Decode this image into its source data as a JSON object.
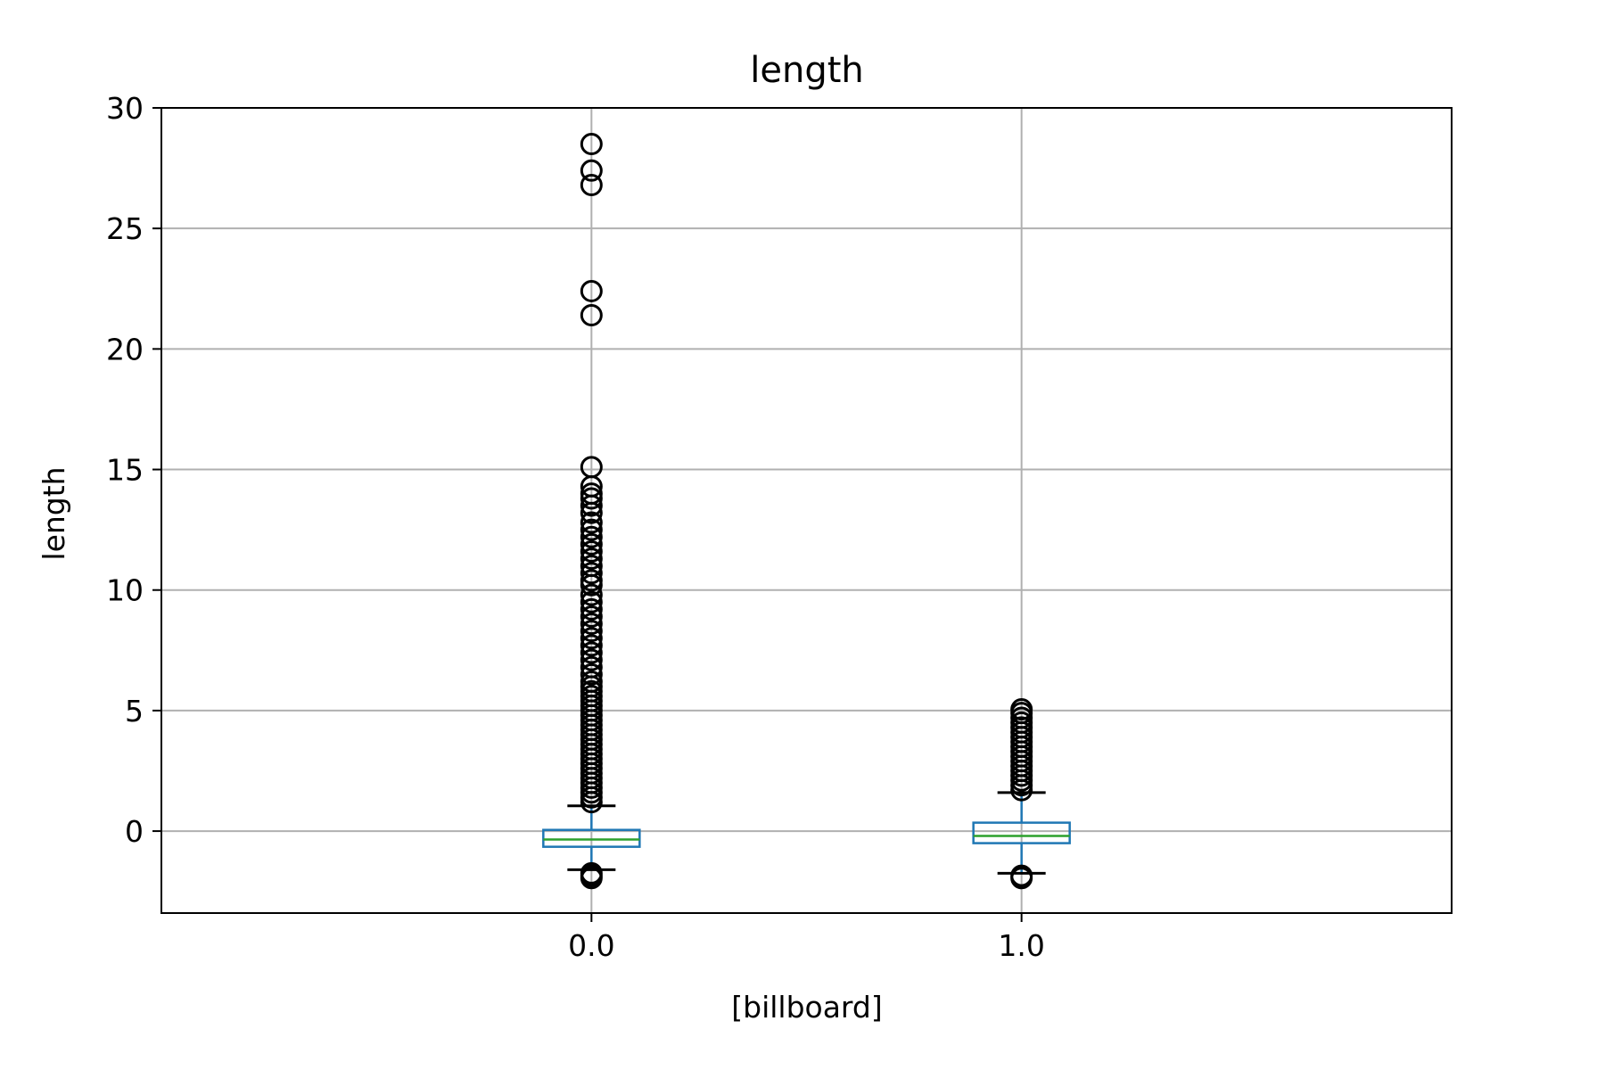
{
  "chart_data": {
    "type": "box",
    "title": "length",
    "xlabel": "[billboard]",
    "ylabel": "length",
    "ylim": [
      -3.4,
      30
    ],
    "yticks": [
      0,
      5,
      10,
      15,
      20,
      25,
      30
    ],
    "grid": true,
    "categories": [
      "0.0",
      "1.0"
    ],
    "boxes": [
      {
        "category": "0.0",
        "whisker_low": -1.6,
        "q1": -0.65,
        "median": -0.35,
        "q3": 0.05,
        "whisker_high": 1.05,
        "outliers": [
          -1.75,
          -1.85,
          -1.95,
          1.2,
          1.4,
          1.6,
          1.8,
          2.0,
          2.2,
          2.4,
          2.6,
          2.8,
          3.0,
          3.2,
          3.4,
          3.6,
          3.8,
          4.0,
          4.2,
          4.4,
          4.6,
          4.8,
          5.0,
          5.2,
          5.4,
          5.6,
          5.8,
          6.0,
          6.2,
          6.5,
          6.8,
          7.1,
          7.4,
          7.7,
          8.0,
          8.3,
          8.6,
          8.9,
          9.2,
          9.5,
          9.8,
          10.2,
          10.4,
          10.7,
          11.0,
          11.3,
          11.6,
          11.9,
          12.2,
          12.5,
          12.8,
          13.2,
          13.5,
          13.8,
          14.0,
          14.3,
          15.1,
          21.4,
          22.4,
          26.8,
          27.4,
          28.5
        ]
      },
      {
        "category": "1.0",
        "whisker_low": -1.75,
        "q1": -0.5,
        "median": -0.2,
        "q3": 0.35,
        "whisker_high": 1.6,
        "outliers": [
          -1.85,
          -1.95,
          1.7,
          1.9,
          2.1,
          2.3,
          2.5,
          2.7,
          2.9,
          3.1,
          3.3,
          3.5,
          3.7,
          3.9,
          4.1,
          4.3,
          4.5,
          4.7,
          4.9,
          5.05
        ]
      }
    ],
    "colors": {
      "box": "#1f77b4",
      "median": "#2ca02c",
      "whisker_cap": "#000000",
      "outlier": "#000000",
      "grid": "#b0b0b0"
    }
  }
}
